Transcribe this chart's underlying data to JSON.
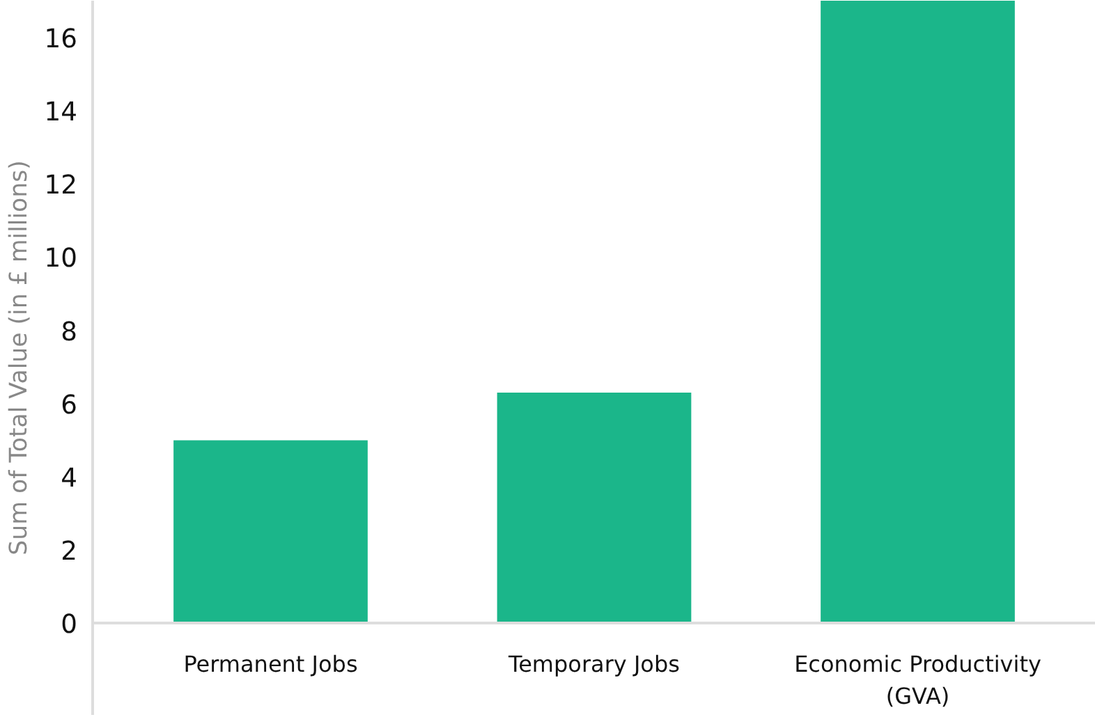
{
  "chart_data": {
    "type": "bar",
    "ylabel": "Sum of Total Value (in £ millions)",
    "categories": [
      "Permanent Jobs",
      "Temporary Jobs",
      "Economic Productivity\n(GVA)"
    ],
    "values": [
      5.0,
      6.3,
      17
    ],
    "color": "#1bb68a",
    "ylim": [
      -2.5,
      17
    ],
    "yticks": [
      0,
      2,
      4,
      6,
      8,
      10,
      12,
      14,
      16
    ],
    "grid": false
  }
}
